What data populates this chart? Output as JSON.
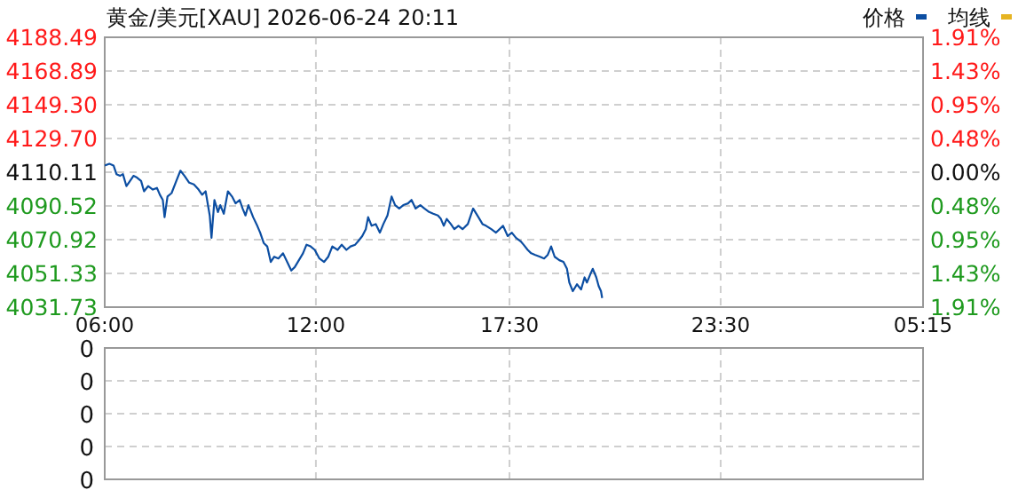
{
  "chart_data": [
    {
      "type": "line",
      "title": "黄金/美元[XAU] 2026-06-24 20:11",
      "legend": "top right",
      "grid": true,
      "xlim": [
        "2026-06-24T06:00",
        "2026-06-25T05:15"
      ],
      "xticks": [
        {
          "value": "2026-06-24T06:00",
          "label": "06:00"
        },
        {
          "value": "2026-06-24T12:00",
          "label": "12:00"
        },
        {
          "value": "2026-06-24T17:30",
          "label": "17:30"
        },
        {
          "value": "2026-06-24T23:30",
          "label": "23:30"
        },
        {
          "value": "2026-06-25T05:15",
          "label": "05:15"
        }
      ],
      "ylim": [
        4031.73,
        4188.49
      ],
      "yticks": [
        4031.73,
        4051.33,
        4070.92,
        4090.52,
        4110.11,
        {
          "value": 4129.7,
          "label": "4129.70"
        },
        {
          "value": 4149.3,
          "label": "4149.30"
        },
        4168.89,
        4188.49
      ],
      "y2lim": [
        -1.91,
        1.91
      ],
      "y2ticks": [
        {
          "value": -1.91,
          "label": "1.91%"
        },
        {
          "value": -1.43,
          "label": "1.43%"
        },
        {
          "value": -0.95,
          "label": "0.95%"
        },
        {
          "value": -0.48,
          "label": "0.48%"
        },
        {
          "value": 0,
          "label": "0.00%"
        },
        {
          "value": 0.48,
          "label": "0.48%"
        },
        {
          "value": 0.95,
          "label": "0.95%"
        },
        {
          "value": 1.43,
          "label": "1.43%"
        },
        {
          "value": 1.91,
          "label": "1.91%"
        }
      ],
      "series": [
        {
          "name": "价格",
          "color": "#0c4ea2",
          "x": [
            "2026-06-24T06:00",
            "2026-06-24T06:08",
            "2026-06-24T06:15",
            "2026-06-24T06:20",
            "2026-06-24T06:26",
            "2026-06-24T06:31",
            "2026-06-24T06:37",
            "2026-06-24T06:41",
            "2026-06-24T06:49",
            "2026-06-24T06:55",
            "2026-06-24T07:02",
            "2026-06-24T07:07",
            "2026-06-24T07:14",
            "2026-06-24T07:22",
            "2026-06-24T07:29",
            "2026-06-24T07:34",
            "2026-06-24T07:39",
            "2026-06-24T07:42",
            "2026-06-24T07:47",
            "2026-06-24T07:54",
            "2026-06-24T08:02",
            "2026-06-24T08:09",
            "2026-06-24T08:16",
            "2026-06-24T08:24",
            "2026-06-24T08:32",
            "2026-06-24T08:40",
            "2026-06-24T08:46",
            "2026-06-24T08:52",
            "2026-06-24T08:59",
            "2026-06-24T09:02",
            "2026-06-24T09:07",
            "2026-06-24T09:13",
            "2026-06-24T09:17",
            "2026-06-24T09:23",
            "2026-06-24T09:30",
            "2026-06-24T09:37",
            "2026-06-24T09:43",
            "2026-06-24T09:50",
            "2026-06-24T09:55",
            "2026-06-24T10:00",
            "2026-06-24T10:05",
            "2026-06-24T10:13",
            "2026-06-24T10:20",
            "2026-06-24T10:25",
            "2026-06-24T10:31",
            "2026-06-24T10:37",
            "2026-06-24T10:43",
            "2026-06-24T10:49",
            "2026-06-24T10:56",
            "2026-06-24T11:04",
            "2026-06-24T11:11",
            "2026-06-24T11:18",
            "2026-06-24T11:24",
            "2026-06-24T11:31",
            "2026-06-24T11:38",
            "2026-06-24T11:44",
            "2026-06-24T11:51",
            "2026-06-24T11:58",
            "2026-06-24T12:06",
            "2026-06-24T12:14",
            "2026-06-24T12:21",
            "2026-06-24T12:28",
            "2026-06-24T12:37",
            "2026-06-24T12:44",
            "2026-06-24T12:52",
            "2026-06-24T12:59",
            "2026-06-24T13:07",
            "2026-06-24T13:12",
            "2026-06-24T13:19",
            "2026-06-24T13:25",
            "2026-06-24T13:29",
            "2026-06-24T13:35",
            "2026-06-24T13:42",
            "2026-06-24T13:49",
            "2026-06-24T13:55",
            "2026-06-24T14:02",
            "2026-06-24T14:09",
            "2026-06-24T14:15",
            "2026-06-24T14:22",
            "2026-06-24T14:29",
            "2026-06-24T14:37",
            "2026-06-24T14:43",
            "2026-06-24T14:50",
            "2026-06-24T14:58",
            "2026-06-24T15:05",
            "2026-06-24T15:13",
            "2026-06-24T15:20",
            "2026-06-24T15:28",
            "2026-06-24T15:33",
            "2026-06-24T15:38",
            "2026-06-24T15:43",
            "2026-06-24T15:50",
            "2026-06-24T15:56",
            "2026-06-24T16:03",
            "2026-06-24T16:10",
            "2026-06-24T16:19",
            "2026-06-24T16:28",
            "2026-06-24T16:37",
            "2026-06-24T16:44",
            "2026-06-24T16:50",
            "2026-06-24T16:59",
            "2026-06-24T17:07",
            "2026-06-24T17:19",
            "2026-06-24T17:27",
            "2026-06-24T17:34",
            "2026-06-24T17:41",
            "2026-06-24T17:49",
            "2026-06-24T17:54",
            "2026-06-24T18:01",
            "2026-06-24T18:07",
            "2026-06-24T18:14",
            "2026-06-24T18:22",
            "2026-06-24T18:29",
            "2026-06-24T18:35",
            "2026-06-24T18:41",
            "2026-06-24T18:47",
            "2026-06-24T18:55",
            "2026-06-24T19:02",
            "2026-06-24T19:08",
            "2026-06-24T19:12",
            "2026-06-24T19:18",
            "2026-06-24T19:25",
            "2026-06-24T19:32",
            "2026-06-24T19:38",
            "2026-06-24T19:42",
            "2026-06-24T19:48",
            "2026-06-24T19:52",
            "2026-06-24T19:58",
            "2026-06-24T20:02",
            "2026-06-24T20:06",
            "2026-06-24T20:08"
          ],
          "values": [
            4114,
            4115,
            4114,
            4109,
            4108,
            4109,
            4102,
            4104,
            4108,
            4107,
            4105,
            4099,
            4102,
            4100,
            4101,
            4097,
            4094,
            4084,
            4096,
            4098,
            4105,
            4111,
            4108,
            4104,
            4103,
            4100,
            4097,
            4099,
            4085,
            4072,
            4094,
            4087,
            4091,
            4086,
            4099,
            4096,
            4092,
            4094,
            4089,
            4085,
            4091,
            4084,
            4079,
            4075,
            4069,
            4067,
            4058,
            4061,
            4060,
            4063,
            4058,
            4053,
            4055,
            4059,
            4063,
            4068,
            4067,
            4065,
            4060,
            4058,
            4061,
            4067,
            4065,
            4068,
            4065,
            4067,
            4068,
            4070,
            4073,
            4077,
            4084,
            4079,
            4080,
            4075,
            4080,
            4085,
            4096,
            4091,
            4089,
            4091,
            4092,
            4094,
            4089,
            4091,
            4089,
            4087,
            4086,
            4085,
            4083,
            4079,
            4083,
            4080,
            4077,
            4079,
            4077,
            4080,
            4089,
            4084,
            4080,
            4079,
            4077,
            4075,
            4079,
            4073,
            4075,
            4072,
            4070,
            4068,
            4065,
            4063,
            4062,
            4061,
            4060,
            4062,
            4067,
            4061,
            4059,
            4058,
            4054,
            4046,
            4041,
            4045,
            4042,
            4049,
            4046,
            4051,
            4054,
            4049,
            4044,
            4041,
            4037
          ]
        },
        {
          "name": "均线",
          "color": "#e6b422",
          "values": [
            null
          ]
        }
      ]
    },
    {
      "type": "other",
      "annotations": [
        "0",
        "0",
        "0",
        "0",
        "0"
      ]
    }
  ]
}
